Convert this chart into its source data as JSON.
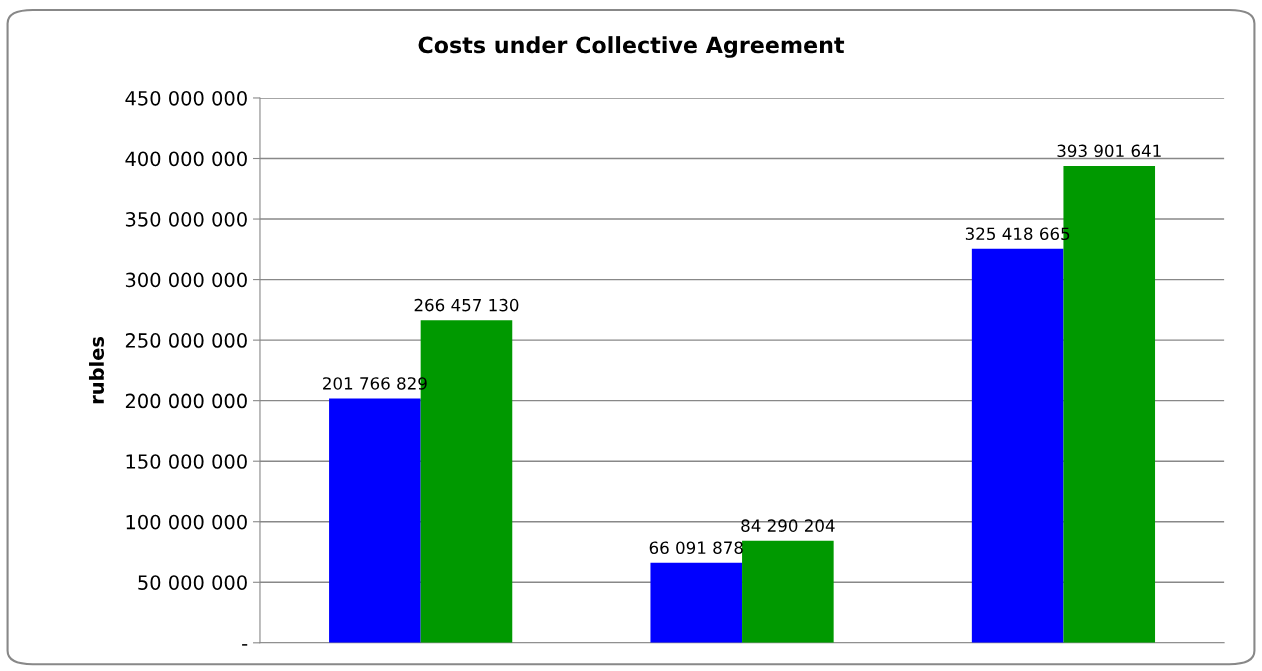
{
  "chart_data": {
    "type": "bar",
    "title": "Costs under Collective Agreement",
    "ylabel": "rubles",
    "categories": [
      null,
      null,
      null
    ],
    "series": [
      {
        "color": "#0000ff",
        "values": [
          201766829,
          66091878,
          325418665
        ],
        "value_labels": [
          "201 766 829",
          "66 091 878",
          "325 418 665"
        ]
      },
      {
        "color": "#009900",
        "values": [
          266457130,
          84290204,
          393901641
        ],
        "value_labels": [
          "266 457 130",
          "84 290 204",
          "393 901 641"
        ]
      }
    ],
    "ylim": [
      0,
      450000000
    ],
    "yticks": [
      {
        "value": 0,
        "label": "-"
      },
      {
        "value": 50000000,
        "label": "50 000 000"
      },
      {
        "value": 100000000,
        "label": "100 000 000"
      },
      {
        "value": 150000000,
        "label": "150 000 000"
      },
      {
        "value": 200000000,
        "label": "200 000 000"
      },
      {
        "value": 250000000,
        "label": "250 000 000"
      },
      {
        "value": 300000000,
        "label": "300 000 000"
      },
      {
        "value": 350000000,
        "label": "350 000 000"
      },
      {
        "value": 400000000,
        "label": "400 000 000"
      },
      {
        "value": 450000000,
        "label": "450 000 000"
      }
    ],
    "grid": "y"
  }
}
